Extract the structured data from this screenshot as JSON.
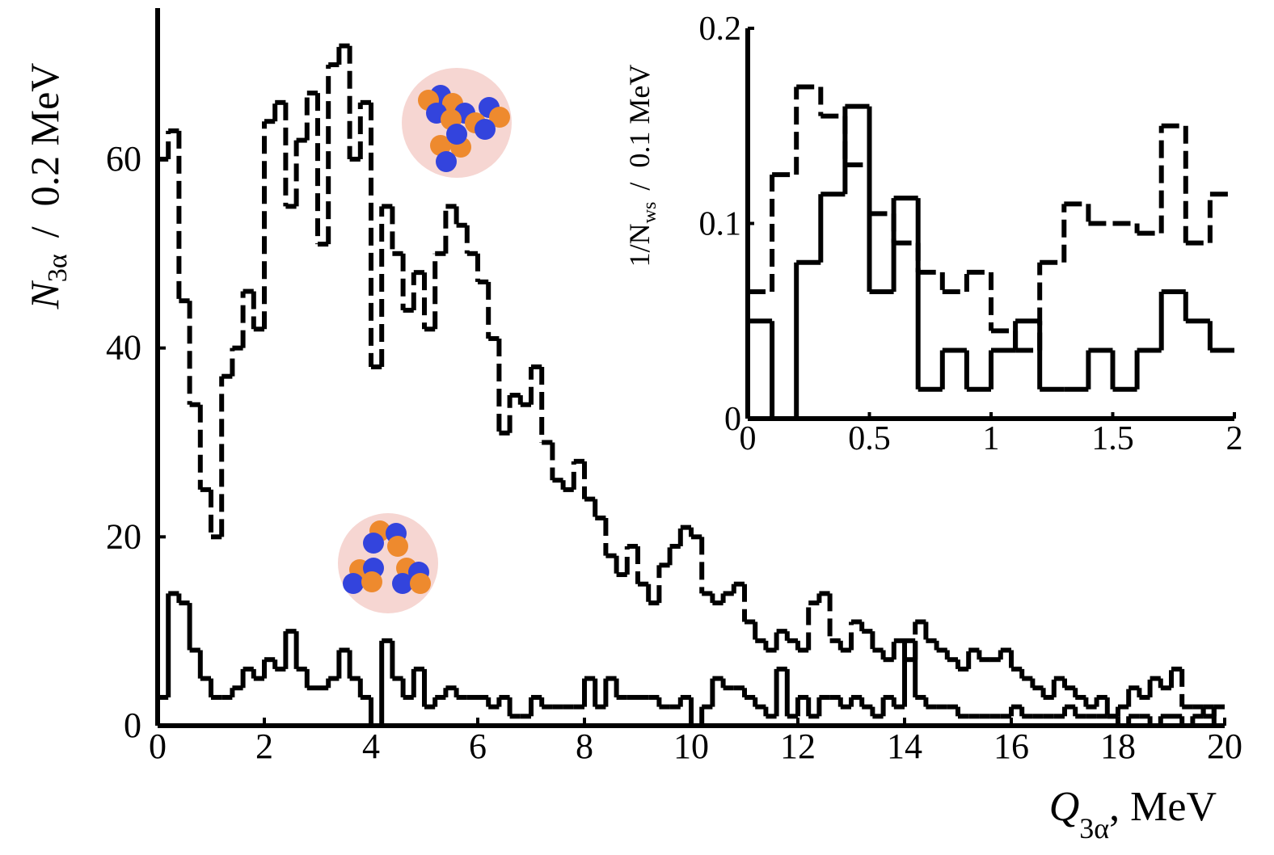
{
  "chart_data": [
    {
      "type": "histogram",
      "xlabel": {
        "main": "Q",
        "sub": "3α",
        "unit": ", MeV"
      },
      "ylabel": {
        "main": "N",
        "sub": "3α",
        "unit": "/  0.2 MeV"
      },
      "bins": [
        0,
        0.2,
        0.4,
        0.6,
        0.8,
        1,
        1.2,
        1.4,
        1.6,
        1.8,
        2,
        2.2,
        2.4,
        2.6,
        2.8,
        3,
        3.2,
        3.4,
        3.6,
        3.8,
        4,
        4.2,
        4.4,
        4.6,
        4.8,
        5,
        5.2,
        5.4,
        5.6,
        5.8,
        6,
        6.2,
        6.4,
        6.6,
        6.8,
        7,
        7.2,
        7.4,
        7.6,
        7.8,
        8,
        8.2,
        8.4,
        8.6,
        8.8,
        9,
        9.2,
        9.4,
        9.6,
        9.8,
        10,
        10.2,
        10.4,
        10.6,
        10.8,
        11,
        11.2,
        11.4,
        11.6,
        11.8,
        12,
        12.2,
        12.4,
        12.6,
        12.8,
        13,
        13.2,
        13.4,
        13.6,
        13.8,
        14,
        14.2,
        14.4,
        14.6,
        14.8,
        15,
        15.2,
        15.4,
        15.6,
        15.8,
        16,
        16.2,
        16.4,
        16.6,
        16.8,
        17,
        17.2,
        17.4,
        17.6,
        17.8,
        18,
        18.2,
        18.4,
        18.6,
        18.8,
        19,
        19.2,
        19.4,
        19.6,
        19.8,
        20
      ],
      "series": [
        {
          "color": "#000000",
          "style": "dashed",
          "values": [
            60,
            63,
            45,
            34,
            25,
            20,
            37,
            40,
            46,
            42,
            64,
            66,
            55,
            62,
            67,
            51,
            70,
            72,
            60,
            66,
            38,
            55,
            50,
            44,
            48,
            42,
            50,
            55,
            53,
            50,
            47,
            41,
            31,
            35,
            34,
            38,
            30,
            26,
            25,
            28,
            24,
            22,
            18,
            16,
            19,
            15,
            13,
            17,
            19,
            21,
            20,
            14,
            13,
            14,
            15,
            11,
            9,
            8,
            10,
            9,
            8,
            13,
            14,
            9,
            8,
            11,
            10,
            8,
            7,
            9,
            7,
            11,
            9,
            8,
            7,
            6,
            8,
            7,
            7,
            8,
            6,
            5,
            4,
            3,
            5,
            4,
            3,
            2,
            3,
            1,
            2,
            4,
            3,
            5,
            4,
            6,
            2,
            2,
            1,
            2
          ]
        },
        {
          "color": "#000000",
          "style": "solid",
          "values": [
            3,
            14,
            13,
            8,
            5,
            3,
            3,
            4,
            6,
            5,
            7,
            6,
            10,
            6,
            4,
            4,
            5,
            8,
            5,
            3,
            0,
            9,
            5,
            3,
            6,
            2,
            3,
            4,
            3,
            3,
            3,
            2,
            3,
            1,
            1,
            3,
            2,
            2,
            2,
            2,
            5,
            2,
            5,
            3,
            3,
            3,
            3,
            2,
            2,
            3,
            0,
            2,
            5,
            4,
            4,
            3,
            2,
            1,
            6,
            1,
            3,
            1,
            3,
            3,
            2,
            3,
            2,
            1,
            3,
            2,
            9,
            3,
            2,
            2,
            2,
            1,
            1,
            1,
            1,
            1,
            2,
            1,
            1,
            1,
            1,
            2,
            1,
            1,
            1,
            1,
            0,
            1,
            1,
            0,
            1,
            1,
            0,
            1,
            2,
            0
          ]
        }
      ],
      "xlim": [
        0,
        20
      ],
      "ylim": [
        0,
        76
      ],
      "xticks": [
        0,
        2,
        4,
        6,
        8,
        10,
        12,
        14,
        16,
        18,
        20
      ],
      "yticks": [
        0,
        20,
        40,
        60
      ]
    },
    {
      "type": "histogram",
      "ylabel": {
        "main": "1/N",
        "sub": "ws",
        "unit": "/  0.1 MeV"
      },
      "bins": [
        0,
        0.1,
        0.2,
        0.3,
        0.4,
        0.5,
        0.6,
        0.7,
        0.8,
        0.9,
        1,
        1.1,
        1.2,
        1.3,
        1.4,
        1.5,
        1.6,
        1.7,
        1.8,
        1.9,
        2
      ],
      "series": [
        {
          "color": "#000000",
          "style": "dashed",
          "values": [
            0.065,
            0.125,
            0.17,
            0.155,
            0.13,
            0.105,
            0.09,
            0.075,
            0.065,
            0.075,
            0.045,
            0.035,
            0.08,
            0.11,
            0.1,
            0.1,
            0.095,
            0.15,
            0.09,
            0.115
          ]
        },
        {
          "color": "#000000",
          "style": "solid",
          "values": [
            0.05,
            0,
            0.08,
            0.115,
            0.16,
            0.065,
            0.113,
            0.015,
            0.035,
            0.015,
            0.035,
            0.05,
            0.015,
            0.015,
            0.035,
            0.015,
            0.035,
            0.065,
            0.05,
            0.035
          ]
        }
      ],
      "xlim": [
        0,
        2
      ],
      "ylim": [
        0,
        0.2
      ],
      "xticks": [
        0,
        0.5,
        1,
        1.5,
        2
      ],
      "yticks": [
        0,
        0.1,
        0.2
      ]
    }
  ]
}
